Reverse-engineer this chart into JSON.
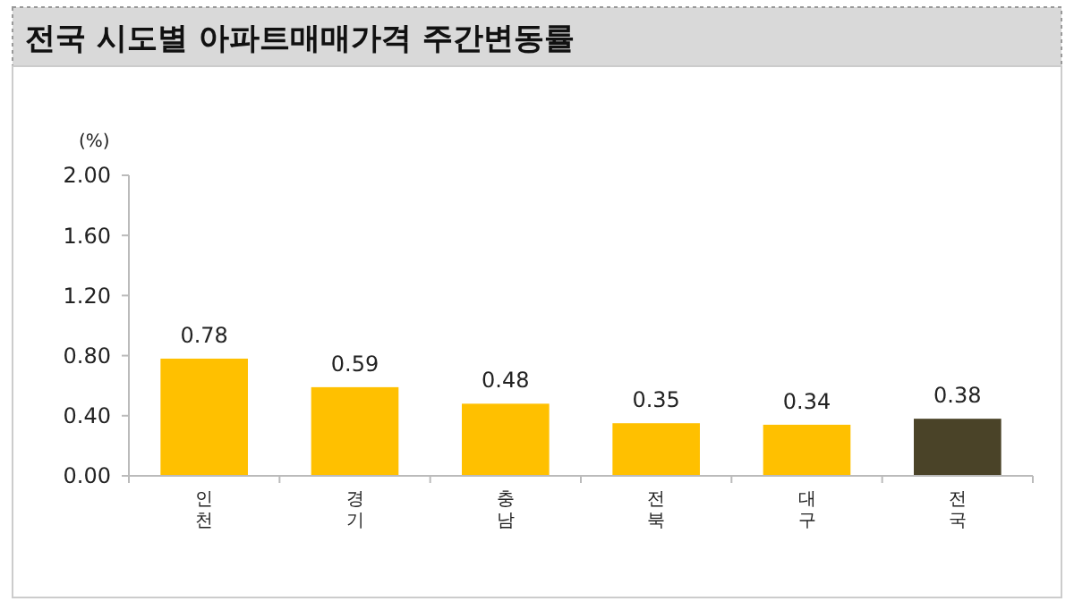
{
  "chart_data": {
    "type": "bar",
    "title": "전국 시도별 아파트매매가격 주간변동률",
    "ylabel": "(%)",
    "categories": [
      "인천",
      "경기",
      "충남",
      "전북",
      "대구",
      "전국"
    ],
    "values": [
      0.78,
      0.59,
      0.48,
      0.35,
      0.34,
      0.38
    ],
    "colors": [
      "#ffc000",
      "#ffc000",
      "#ffc000",
      "#ffc000",
      "#ffc000",
      "#4a4328"
    ],
    "ylim": [
      0,
      2
    ],
    "yticks": [
      "0.00",
      "0.40",
      "0.80",
      "1.20",
      "1.60",
      "2.00"
    ],
    "data_labels": true
  }
}
